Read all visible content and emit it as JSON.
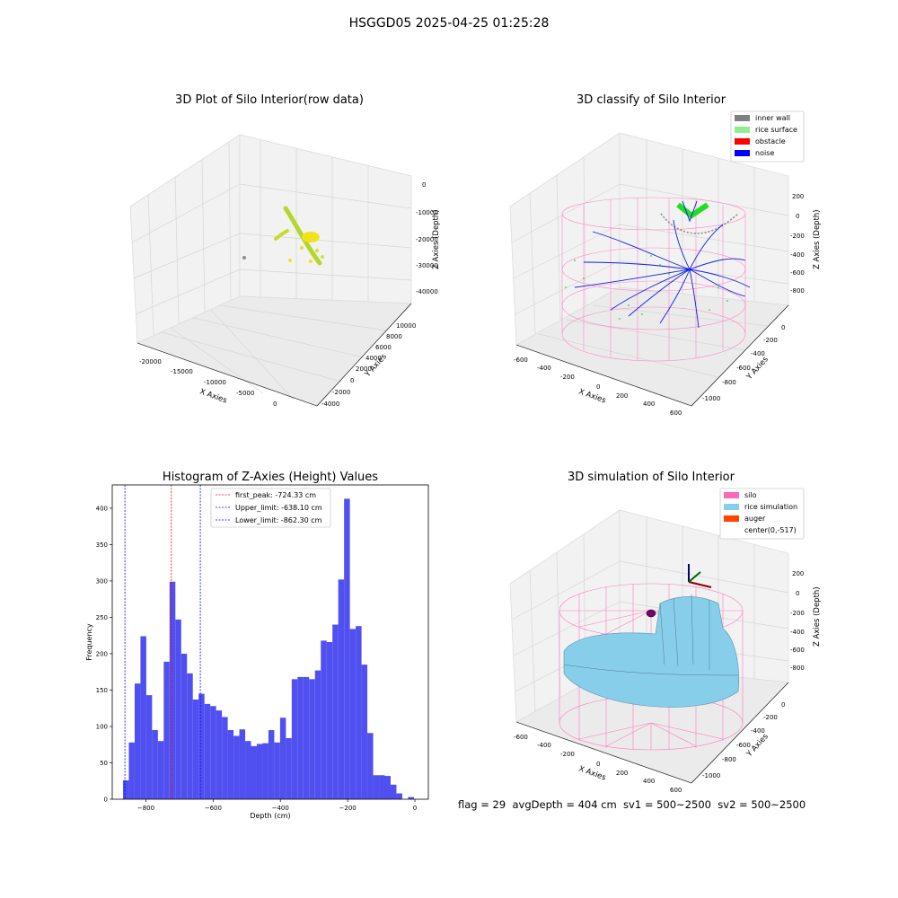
{
  "suptitle": "HSGGD05 2025-04-25 01:25:28",
  "panels": {
    "raw": {
      "title": "3D Plot of Silo Interior(row data)",
      "xlabel": "X Axies",
      "ylabel": "Y Axies",
      "zlabel": "Z Axies (Depth)",
      "xticks": [
        "-20000",
        "-15000",
        "-10000",
        "-5000",
        "0"
      ],
      "yticks": [
        "-4000",
        "-2000",
        "0",
        "2000",
        "4000",
        "6000",
        "8000",
        "10000"
      ],
      "zticks": [
        "0",
        "-10000",
        "-20000",
        "-30000",
        "-40000"
      ]
    },
    "classify": {
      "title": "3D classify of Silo Interior",
      "xlabel": "X Axies",
      "ylabel": "Y Axies",
      "zlabel": "Z Axies (Depth)",
      "xticks": [
        "-600",
        "-400",
        "-200",
        "0",
        "200",
        "400",
        "600"
      ],
      "yticks": [
        "-1000",
        "-800",
        "-600",
        "-400",
        "-200",
        "0"
      ],
      "zticks": [
        "200",
        "0",
        "-200",
        "-400",
        "-600",
        "-800"
      ],
      "legend": [
        {
          "label": "inner wall",
          "color": "#808080"
        },
        {
          "label": "rice surface",
          "color": "#90ee90"
        },
        {
          "label": "obstacle",
          "color": "#ff0000"
        },
        {
          "label": "noise",
          "color": "#0000ff"
        }
      ]
    },
    "simulation": {
      "title": "3D simulation of Silo Interior",
      "xlabel": "X Axies",
      "ylabel": "Y Axies",
      "zlabel": "Z Axies (Depth)",
      "xticks": [
        "-600",
        "-400",
        "-200",
        "0",
        "200",
        "400",
        "600"
      ],
      "yticks": [
        "-1000",
        "-800",
        "-600",
        "-400",
        "-200",
        "0"
      ],
      "zticks": [
        "200",
        "0",
        "-200",
        "-400",
        "-600",
        "-800"
      ],
      "legend": [
        {
          "label": "silo",
          "color": "#ff69b4"
        },
        {
          "label": "rice simulation",
          "color": "#87ceeb"
        },
        {
          "label": "auger",
          "color": "#ff4500"
        },
        {
          "label": "center(0,-517)",
          "color": ""
        }
      ]
    }
  },
  "chart_data": {
    "type": "bar",
    "title": "Histogram of Z-Axies (Height) Values",
    "xlabel": "Depth (cm)",
    "ylabel": "Frequency",
    "xlim": [
      -900,
      40
    ],
    "ylim": [
      0,
      432
    ],
    "xticks": [
      -800,
      -600,
      -400,
      -200,
      0
    ],
    "yticks": [
      0,
      50,
      100,
      150,
      200,
      250,
      300,
      350,
      400
    ],
    "bar_color": "#5050f0",
    "bin_start": -868,
    "bin_width": 17.3,
    "values": [
      26,
      78,
      159,
      224,
      143,
      95,
      80,
      189,
      299,
      247,
      200,
      173,
      137,
      145,
      131,
      128,
      122,
      113,
      95,
      87,
      96,
      80,
      73,
      76,
      77,
      95,
      78,
      112,
      84,
      165,
      168,
      168,
      165,
      177,
      218,
      216,
      240,
      302,
      413,
      234,
      238,
      185,
      91,
      33,
      33,
      32,
      20,
      8,
      0,
      3
    ],
    "lines": [
      {
        "label": "first_peak: -724.33 cm",
        "x": -724.33,
        "color": "#ff0000"
      },
      {
        "label": "Upper_limit: -638.10 cm",
        "x": -638.1,
        "color": "#0000ff"
      },
      {
        "label": "Lower_limit: -862.30 cm",
        "x": -862.3,
        "color": "#0000ff"
      }
    ]
  },
  "footer": {
    "text": "flag = 29  avgDepth = 404 cm  sv1 = 500~2500  sv2 = 500~2500"
  }
}
